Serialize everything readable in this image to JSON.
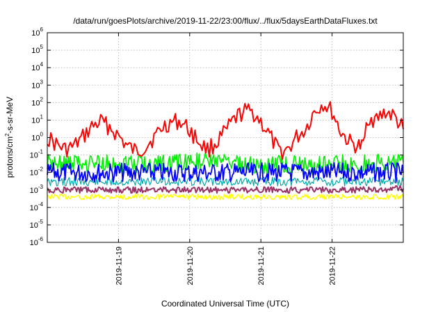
{
  "chart_data": {
    "type": "line",
    "title": "/data/run/goesPlots/archive/2019-11-22/23:00/flux/../flux/5daysEarthDataFluxes.txt",
    "xlabel": "Coordinated Universal Time (UTC)",
    "ylabel": "protons/cm²-s-sr-MeV",
    "ylabel_base": "protons/cm",
    "ylabel_sup": "2",
    "ylabel_rest": "-s-sr-MeV",
    "yscale": "log",
    "ylim": [
      1e-06,
      1000000.0
    ],
    "xlim": [
      "2019-11-18T00:00",
      "2019-11-23T00:00"
    ],
    "grid": true,
    "x_ticks": [
      "2019-11-19",
      "2019-11-20",
      "2019-11-21",
      "2019-11-22"
    ],
    "y_ticks": [
      {
        "base": "10",
        "exp": "-6",
        "value": 1e-06
      },
      {
        "base": "10",
        "exp": "-5",
        "value": 1e-05
      },
      {
        "base": "10",
        "exp": "-4",
        "value": 0.0001
      },
      {
        "base": "10",
        "exp": "-3",
        "value": 0.001
      },
      {
        "base": "10",
        "exp": "-2",
        "value": 0.01
      },
      {
        "base": "10",
        "exp": "-1",
        "value": 0.1
      },
      {
        "base": "10",
        "exp": "0",
        "value": 1
      },
      {
        "base": "10",
        "exp": "1",
        "value": 10
      },
      {
        "base": "10",
        "exp": "2",
        "value": 100
      },
      {
        "base": "10",
        "exp": "3",
        "value": 1000
      },
      {
        "base": "10",
        "exp": "4",
        "value": 10000
      },
      {
        "base": "10",
        "exp": "5",
        "value": 100000
      },
      {
        "base": "10",
        "exp": "6",
        "value": 1000000
      }
    ],
    "series": [
      {
        "color": "#ff0000",
        "x": [
          "2019-11-18T00:00",
          "2019-11-18T03:00",
          "2019-11-18T06:00",
          "2019-11-18T09:00",
          "2019-11-18T12:00",
          "2019-11-18T15:00",
          "2019-11-18T18:00",
          "2019-11-18T21:00",
          "2019-11-19T00:00",
          "2019-11-19T03:00",
          "2019-11-19T06:00",
          "2019-11-19T09:00",
          "2019-11-19T12:00",
          "2019-11-19T15:00",
          "2019-11-19T18:00",
          "2019-11-19T21:00",
          "2019-11-20T00:00",
          "2019-11-20T03:00",
          "2019-11-20T06:00",
          "2019-11-20T09:00",
          "2019-11-20T12:00",
          "2019-11-20T15:00",
          "2019-11-20T18:00",
          "2019-11-20T21:00",
          "2019-11-21T00:00",
          "2019-11-21T03:00",
          "2019-11-21T06:00",
          "2019-11-21T09:00",
          "2019-11-21T12:00",
          "2019-11-21T15:00",
          "2019-11-21T18:00",
          "2019-11-21T21:00",
          "2019-11-22T00:00",
          "2019-11-22T03:00",
          "2019-11-22T06:00",
          "2019-11-22T09:00",
          "2019-11-22T10:30",
          "2019-11-22T12:00",
          "2019-11-22T15:00",
          "2019-11-22T18:00",
          "2019-11-22T21:00",
          "2019-11-23T00:00"
        ],
        "values": [
          1.0,
          0.4,
          0.2,
          0.3,
          1.0,
          4.0,
          8.0,
          4.0,
          1.2,
          0.3,
          0.15,
          0.3,
          1.0,
          4.0,
          8.0,
          8.0,
          2.5,
          0.6,
          0.2,
          0.5,
          2.0,
          10,
          30,
          30,
          8,
          1.2,
          0.15,
          0.2,
          1.0,
          3,
          30,
          90,
          30,
          2,
          0.5,
          0.3,
          0.3,
          15,
          10,
          30,
          15,
          3
        ]
      },
      {
        "color": "#00ee00",
        "x": [
          "2019-11-18T00:00",
          "2019-11-18T12:00",
          "2019-11-19T00:00",
          "2019-11-19T12:00",
          "2019-11-19T20:00",
          "2019-11-20T00:00",
          "2019-11-20T12:00",
          "2019-11-21T00:00",
          "2019-11-21T12:00",
          "2019-11-22T00:00",
          "2019-11-22T06:00",
          "2019-11-22T12:00",
          "2019-11-23T00:00"
        ],
        "values": [
          0.03,
          0.03,
          0.03,
          0.03,
          0.03,
          0.05,
          0.03,
          0.03,
          0.03,
          0.03,
          0.03,
          0.03,
          0.04
        ]
      },
      {
        "color": "#0000ff",
        "x": [
          "2019-11-18T00:00",
          "2019-11-18T12:00",
          "2019-11-19T00:00",
          "2019-11-19T12:00",
          "2019-11-20T00:00",
          "2019-11-20T12:00",
          "2019-11-21T00:00",
          "2019-11-21T12:00",
          "2019-11-22T00:00",
          "2019-11-22T12:00",
          "2019-11-23T00:00"
        ],
        "values": [
          0.01,
          0.01,
          0.01,
          0.01,
          0.01,
          0.01,
          0.01,
          0.01,
          0.01,
          0.01,
          0.01
        ]
      },
      {
        "color": "#00aaaa",
        "x": [
          "2019-11-18T00:00",
          "2019-11-18T12:00",
          "2019-11-19T00:00",
          "2019-11-19T12:00",
          "2019-11-20T00:00",
          "2019-11-20T12:00",
          "2019-11-21T00:00",
          "2019-11-21T12:00",
          "2019-11-22T00:00",
          "2019-11-22T12:00",
          "2019-11-23T00:00"
        ],
        "values": [
          0.003,
          0.003,
          0.003,
          0.003,
          0.003,
          0.003,
          0.003,
          0.003,
          0.003,
          0.003,
          0.003
        ]
      },
      {
        "color": "#ffff00",
        "x": [
          "2019-11-18T00:00",
          "2019-11-18T12:00",
          "2019-11-19T00:00",
          "2019-11-19T12:00",
          "2019-11-20T00:00",
          "2019-11-20T12:00",
          "2019-11-21T00:00",
          "2019-11-21T12:00",
          "2019-11-22T00:00",
          "2019-11-22T12:00",
          "2019-11-23T00:00"
        ],
        "values": [
          0.0004,
          0.0004,
          0.0004,
          0.0004,
          0.0004,
          0.0004,
          0.0004,
          0.0004,
          0.0004,
          0.0004,
          0.0004
        ]
      },
      {
        "color": "#993366",
        "x": [
          "2019-11-18T00:00",
          "2019-11-18T12:00",
          "2019-11-19T00:00",
          "2019-11-19T12:00",
          "2019-11-20T00:00",
          "2019-11-20T12:00",
          "2019-11-21T00:00",
          "2019-11-21T12:00",
          "2019-11-22T00:00",
          "2019-11-22T12:00",
          "2019-11-23T00:00"
        ],
        "values": [
          0.001,
          0.001,
          0.001,
          0.001,
          0.001,
          0.001,
          0.001,
          0.001,
          0.001,
          0.001,
          0.0012
        ]
      }
    ]
  }
}
